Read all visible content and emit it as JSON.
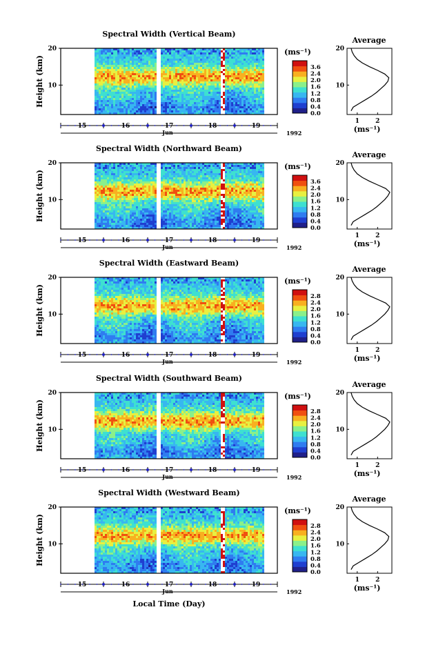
{
  "figure": {
    "x_axis_label": "Local Time (Day)",
    "month_label": "Jun",
    "year_label": "1992"
  },
  "colors": {
    "colormap": [
      "#20208a",
      "#1f3fd0",
      "#2f7cf0",
      "#37b7f0",
      "#3ee0d0",
      "#8af08a",
      "#e8f040",
      "#f8b020",
      "#f05010",
      "#d01010"
    ],
    "profile_line": "#000000",
    "day_tick_marker": "#2020c0"
  },
  "chart_data": [
    {
      "type": "heatmap",
      "title": "Spectral Width (Vertical Beam)",
      "ylabel": "Height (km)",
      "y_ticks": [
        10,
        20
      ],
      "ylim": [
        2,
        20
      ],
      "x_tick_labels": [
        "15",
        "16",
        "17",
        "18",
        "19"
      ],
      "colorbar": {
        "unit": "(ms⁻¹)",
        "ticks": [
          "3.6",
          "2.4",
          "2.0",
          "1.6",
          "1.2",
          "0.8",
          "0.4",
          "0.0"
        ]
      },
      "profile": {
        "title": "Average",
        "xlabel": "(ms⁻¹)",
        "x_ticks": [
          "1",
          "2"
        ],
        "y_ticks": [
          "10",
          "20"
        ],
        "heights_km": [
          3,
          4,
          5,
          6,
          7,
          8,
          9,
          10,
          11,
          12,
          13,
          14,
          15,
          16,
          17,
          18,
          19,
          20
        ],
        "values": [
          0.7,
          0.8,
          1.1,
          1.4,
          1.7,
          1.95,
          2.15,
          2.35,
          2.5,
          2.55,
          2.35,
          2.0,
          1.6,
          1.25,
          1.0,
          0.85,
          0.75,
          0.7
        ]
      }
    },
    {
      "type": "heatmap",
      "title": "Spectral Width (Northward Beam)",
      "ylabel": "Height (km)",
      "y_ticks": [
        10,
        20
      ],
      "ylim": [
        2,
        20
      ],
      "x_tick_labels": [
        "15",
        "16",
        "17",
        "18",
        "19"
      ],
      "colorbar": {
        "unit": "(ms⁻¹)",
        "ticks": [
          "3.6",
          "2.4",
          "2.0",
          "1.6",
          "1.2",
          "0.8",
          "0.4",
          "0.0"
        ]
      },
      "profile": {
        "title": "Average",
        "xlabel": "(ms⁻¹)",
        "x_ticks": [
          "1",
          "2"
        ],
        "y_ticks": [
          "10",
          "20"
        ],
        "heights_km": [
          3,
          4,
          5,
          6,
          7,
          8,
          9,
          10,
          11,
          12,
          13,
          14,
          15,
          16,
          17,
          18,
          19,
          20
        ],
        "values": [
          0.7,
          0.8,
          1.1,
          1.4,
          1.7,
          1.95,
          2.15,
          2.35,
          2.5,
          2.6,
          2.4,
          2.0,
          1.6,
          1.25,
          1.0,
          0.85,
          0.75,
          0.7
        ]
      }
    },
    {
      "type": "heatmap",
      "title": "Spectral Width (Eastward Beam)",
      "ylabel": "Height (km)",
      "y_ticks": [
        10,
        20
      ],
      "ylim": [
        2,
        20
      ],
      "x_tick_labels": [
        "15",
        "16",
        "17",
        "18",
        "19"
      ],
      "colorbar": {
        "unit": "(ms⁻¹)",
        "ticks": [
          "2.8",
          "2.4",
          "2.0",
          "1.6",
          "1.2",
          "0.8",
          "0.4",
          "0.0"
        ]
      },
      "profile": {
        "title": "Average",
        "xlabel": "(ms⁻¹)",
        "x_ticks": [
          "1",
          "2"
        ],
        "y_ticks": [
          "10",
          "20"
        ],
        "heights_km": [
          3,
          4,
          5,
          6,
          7,
          8,
          9,
          10,
          11,
          12,
          13,
          14,
          15,
          16,
          17,
          18,
          19,
          20
        ],
        "values": [
          0.7,
          0.8,
          1.1,
          1.4,
          1.7,
          1.95,
          2.15,
          2.35,
          2.5,
          2.6,
          2.4,
          2.0,
          1.6,
          1.25,
          1.0,
          0.85,
          0.75,
          0.7
        ]
      }
    },
    {
      "type": "heatmap",
      "title": "Spectral Width (Southward Beam)",
      "ylabel": "Height (km)",
      "y_ticks": [
        10,
        20
      ],
      "ylim": [
        2,
        20
      ],
      "x_tick_labels": [
        "15",
        "16",
        "17",
        "18",
        "19"
      ],
      "colorbar": {
        "unit": "(ms⁻¹)",
        "ticks": [
          "2.8",
          "2.4",
          "2.0",
          "1.6",
          "1.2",
          "0.8",
          "0.4",
          "0.0"
        ]
      },
      "profile": {
        "title": "Average",
        "xlabel": "(ms⁻¹)",
        "x_ticks": [
          "1",
          "2"
        ],
        "y_ticks": [
          "10",
          "20"
        ],
        "heights_km": [
          3,
          4,
          5,
          6,
          7,
          8,
          9,
          10,
          11,
          12,
          13,
          14,
          15,
          16,
          17,
          18,
          19,
          20
        ],
        "values": [
          0.7,
          0.8,
          1.1,
          1.4,
          1.7,
          1.95,
          2.15,
          2.35,
          2.5,
          2.6,
          2.4,
          2.0,
          1.6,
          1.25,
          1.0,
          0.85,
          0.75,
          0.7
        ]
      }
    },
    {
      "type": "heatmap",
      "title": "Spectral Width (Westward Beam)",
      "ylabel": "Height (km)",
      "y_ticks": [
        10,
        20
      ],
      "ylim": [
        2,
        20
      ],
      "x_tick_labels": [
        "15",
        "16",
        "17",
        "18",
        "19"
      ],
      "colorbar": {
        "unit": "(ms⁻¹)",
        "ticks": [
          "2.8",
          "2.4",
          "2.0",
          "1.6",
          "1.2",
          "0.8",
          "0.4",
          "0.0"
        ]
      },
      "profile": {
        "title": "Average",
        "xlabel": "(ms⁻¹)",
        "x_ticks": [
          "1",
          "2"
        ],
        "y_ticks": [
          "10",
          "20"
        ],
        "heights_km": [
          3,
          4,
          5,
          6,
          7,
          8,
          9,
          10,
          11,
          12,
          13,
          14,
          15,
          16,
          17,
          18,
          19,
          20
        ],
        "values": [
          0.7,
          0.8,
          1.1,
          1.4,
          1.7,
          1.95,
          2.15,
          2.35,
          2.5,
          2.55,
          2.35,
          2.0,
          1.6,
          1.25,
          1.0,
          0.85,
          0.75,
          0.7
        ]
      }
    }
  ]
}
